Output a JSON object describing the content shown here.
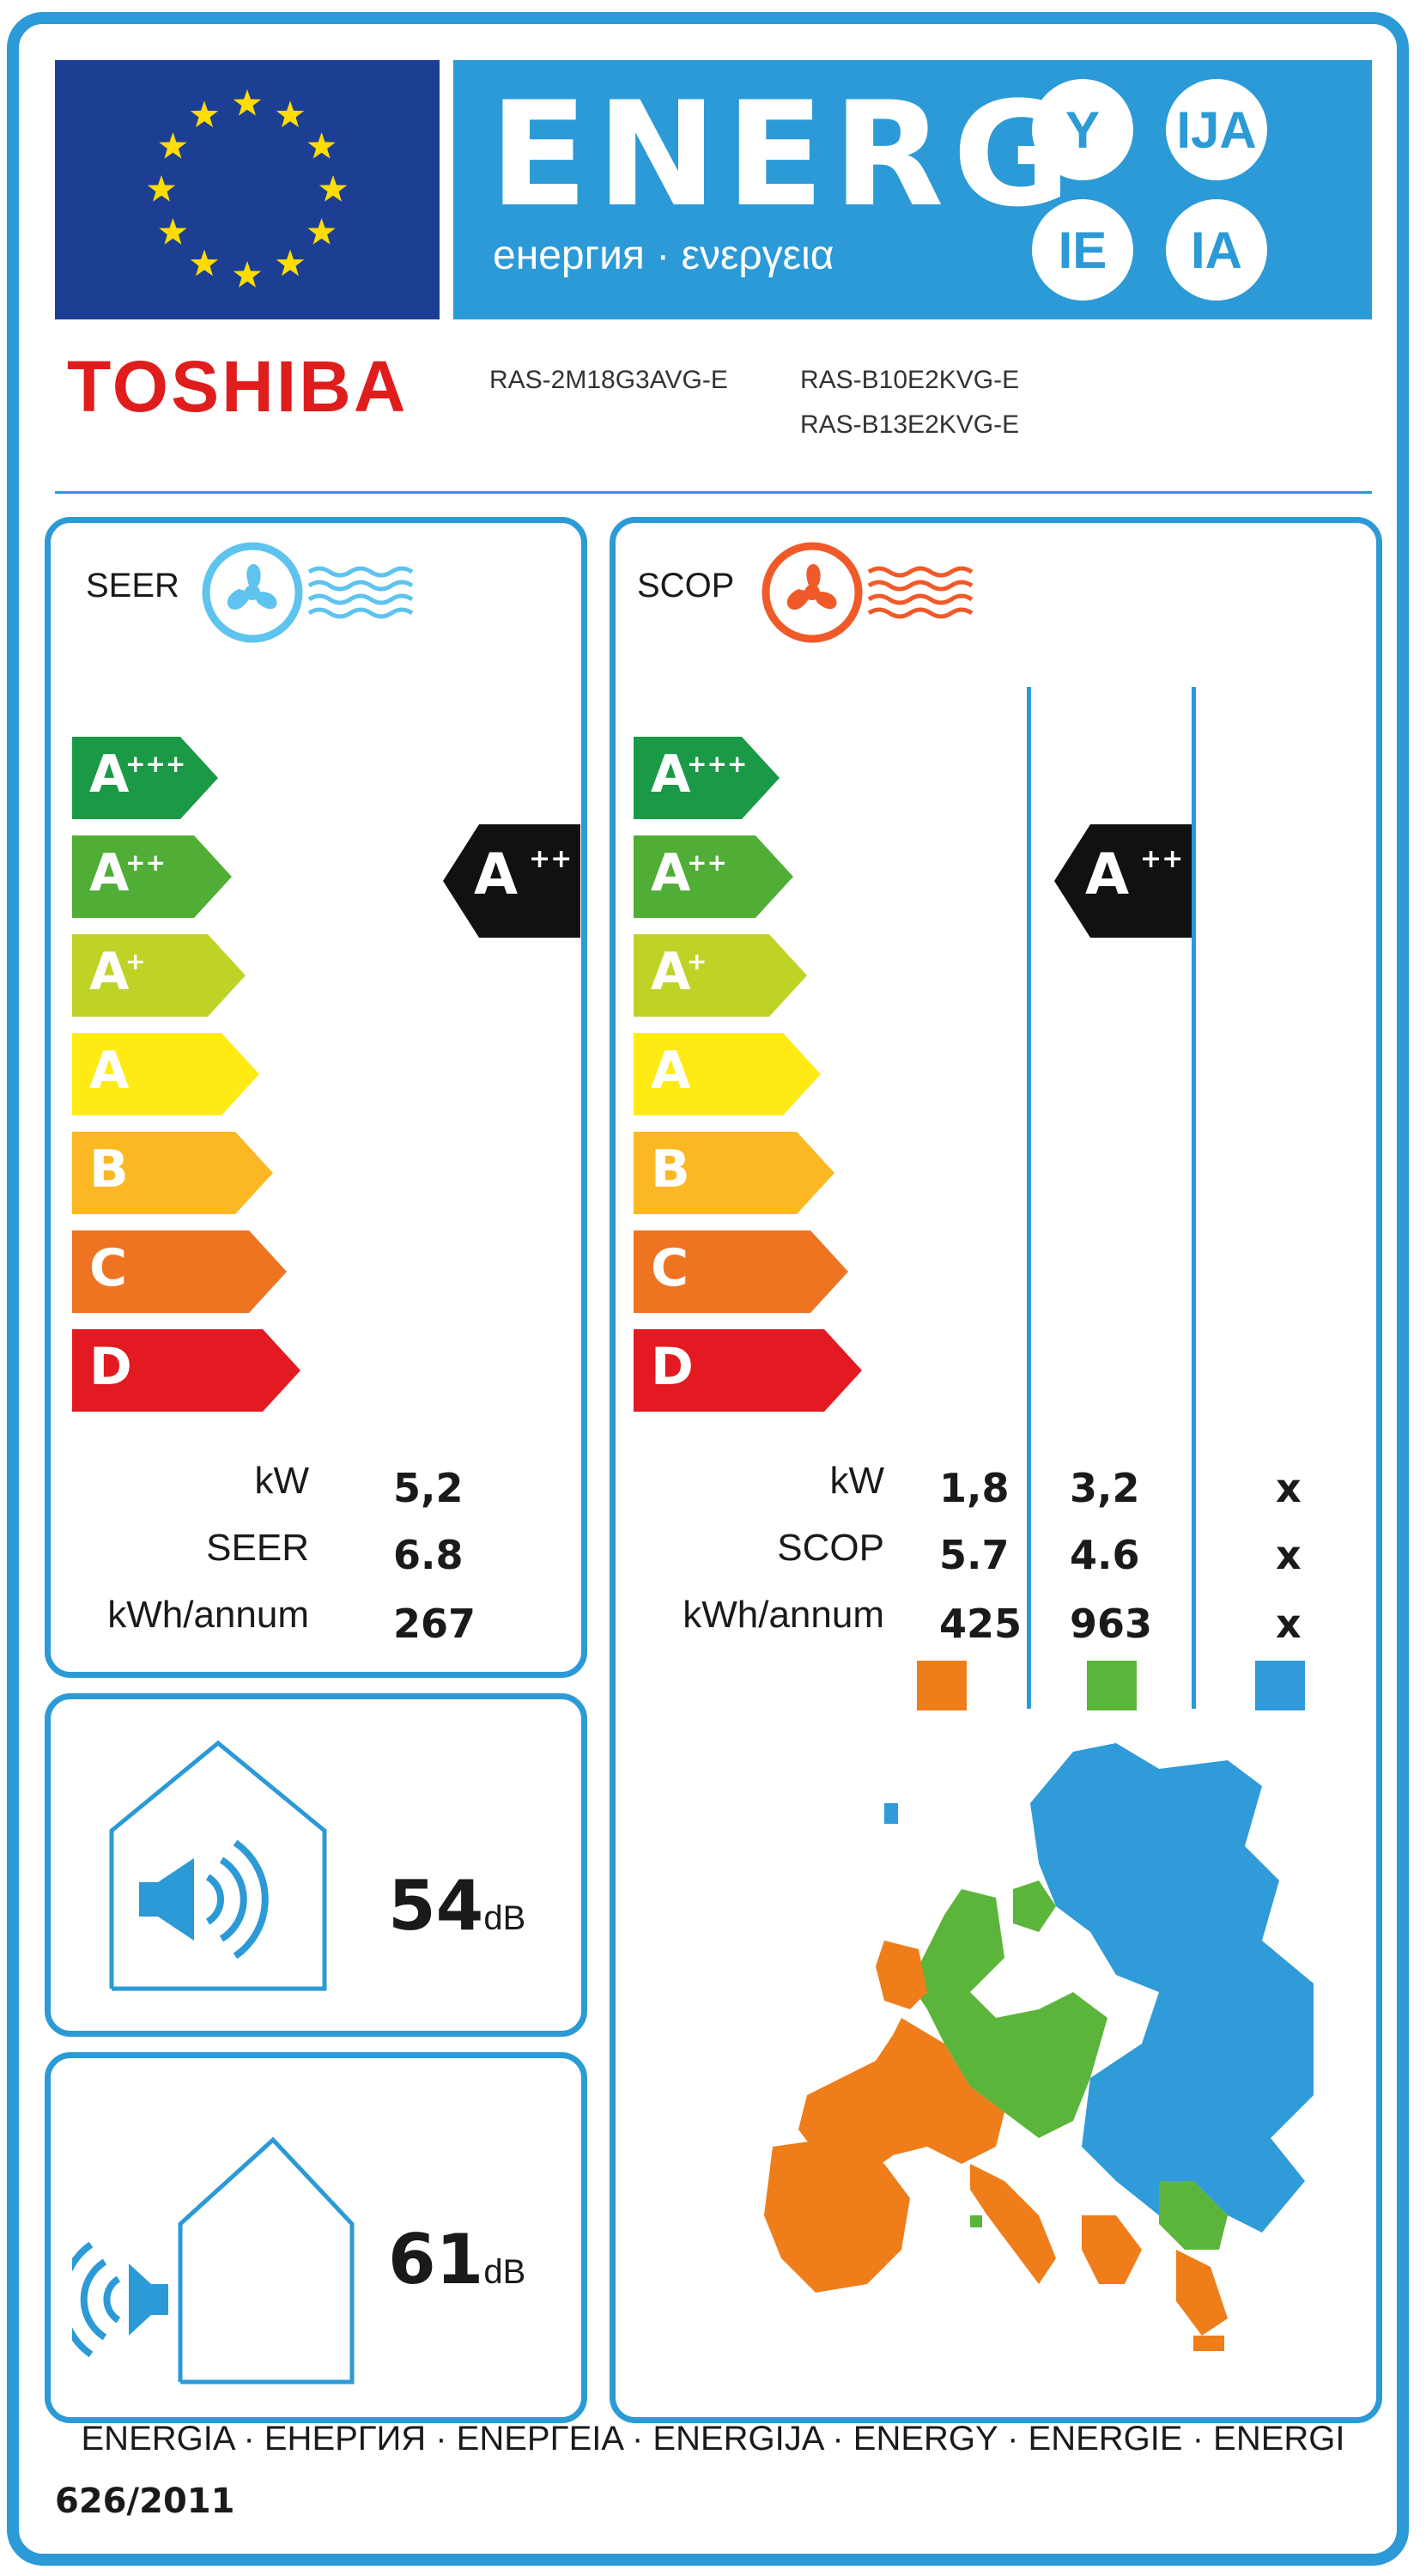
{
  "header": {
    "energy_word": "ENERG",
    "energy_subtitle": "енергия · ενεργεια",
    "suffixes": [
      "Y",
      "IJA",
      "IE",
      "IA"
    ]
  },
  "supplier": {
    "brand": "TOSHIBA",
    "outdoor_model": "RAS-2M18G3AVG-E",
    "indoor_models": [
      "RAS-B10E2KVG-E",
      "RAS-B13E2KVG-E"
    ]
  },
  "cooling": {
    "title": "SEER",
    "classes": [
      {
        "letter": "A",
        "sup": "+++",
        "color": "#1a9a46"
      },
      {
        "letter": "A",
        "sup": "++",
        "color": "#50ae36"
      },
      {
        "letter": "A",
        "sup": "+",
        "color": "#bfd327"
      },
      {
        "letter": "A",
        "sup": "",
        "color": "#ffeb13"
      },
      {
        "letter": "B",
        "sup": "",
        "color": "#fbb823"
      },
      {
        "letter": "C",
        "sup": "",
        "color": "#ee7422"
      },
      {
        "letter": "D",
        "sup": "",
        "color": "#e31a22"
      }
    ],
    "rating": {
      "letter": "A",
      "sup": "++"
    },
    "rows": [
      {
        "label": "kW",
        "value": "5,2"
      },
      {
        "label": "SEER",
        "value": "6.8"
      },
      {
        "label": "kWh/annum",
        "value": "267"
      }
    ]
  },
  "heating": {
    "title": "SCOP",
    "rating": {
      "letter": "A",
      "sup": "++"
    },
    "rows": [
      {
        "label": "kW",
        "values": [
          "1,8",
          "3,2",
          "x"
        ]
      },
      {
        "label": "SCOP",
        "values": [
          "5.7",
          "4.6",
          "x"
        ]
      },
      {
        "label": "kWh/annum",
        "values": [
          "425",
          "963",
          "x"
        ]
      }
    ],
    "zone_colors": [
      "#ee7d1a",
      "#5bb53a",
      "#2f9bd8"
    ]
  },
  "noise": {
    "indoor_value": "54",
    "indoor_unit": "dB",
    "outdoor_value": "61",
    "outdoor_unit": "dB"
  },
  "footer": {
    "languages": "ENERGIA · ЕНЕРГИЯ · ΕΝΕΡΓΕΙΑ · ENERGIJA · ENERGY · ENERGIE · ENERGI",
    "regulation": "626/2011"
  },
  "colors": {
    "frame_blue": "#2b9ad6",
    "eu_blue": "#1d3f93",
    "eu_star": "#ffdd00",
    "brand_red": "#e01d1d"
  }
}
